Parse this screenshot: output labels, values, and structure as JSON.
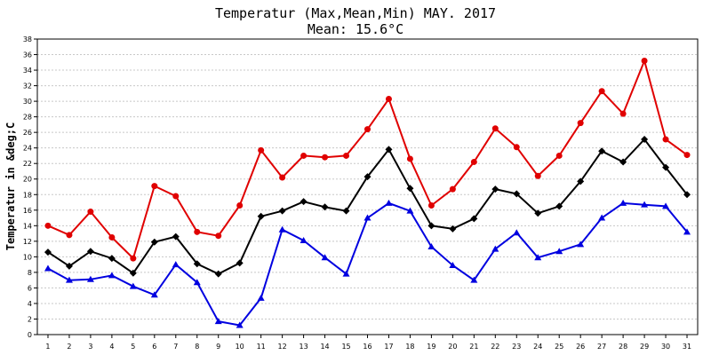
{
  "chart_data": {
    "type": "line",
    "title": "Temperatur (Max,Mean,Min) MAY. 2017",
    "subtitle": "Mean: 15.6°C",
    "xlabel": "",
    "ylabel": "Temperatur in &deg;C",
    "ylim": [
      0,
      38
    ],
    "ytick_step": 2,
    "grid": true,
    "categories": [
      "1",
      "2",
      "3",
      "4",
      "5",
      "6",
      "7",
      "8",
      "9",
      "10",
      "11",
      "12",
      "13",
      "14",
      "15",
      "16",
      "17",
      "18",
      "19",
      "20",
      "21",
      "22",
      "23",
      "24",
      "25",
      "26",
      "27",
      "28",
      "29",
      "30",
      "31"
    ],
    "series": [
      {
        "name": "",
        "color": "#e00000",
        "marker": "circle",
        "values": [
          14.0,
          12.8,
          15.8,
          12.5,
          9.8,
          19.1,
          17.8,
          13.2,
          12.7,
          16.6,
          23.7,
          20.2,
          23.0,
          22.8,
          23.0,
          26.4,
          30.3,
          22.6,
          16.6,
          18.7,
          22.2,
          26.5,
          24.1,
          20.4,
          23.0,
          27.2,
          31.3,
          28.4,
          35.2,
          25.1,
          23.1
        ]
      },
      {
        "name": "",
        "color": "#000000",
        "marker": "diamond",
        "values": [
          10.6,
          8.8,
          10.7,
          9.8,
          7.9,
          11.9,
          12.6,
          9.1,
          7.8,
          9.2,
          15.2,
          15.9,
          17.1,
          16.4,
          15.9,
          20.3,
          23.8,
          18.8,
          14.0,
          13.6,
          14.9,
          18.7,
          18.1,
          15.6,
          16.5,
          19.7,
          23.6,
          22.2,
          25.1,
          21.5,
          18.0
        ]
      },
      {
        "name": "",
        "color": "#0000e0",
        "marker": "triangle",
        "values": [
          8.5,
          7.0,
          7.1,
          7.6,
          6.2,
          5.1,
          9.0,
          6.7,
          1.7,
          1.2,
          4.7,
          13.5,
          12.1,
          9.9,
          7.8,
          15.0,
          16.9,
          15.9,
          11.3,
          8.9,
          7.0,
          11.0,
          13.1,
          9.9,
          10.7,
          11.6,
          15.0,
          16.9,
          16.7,
          16.5,
          13.2
        ]
      }
    ]
  }
}
